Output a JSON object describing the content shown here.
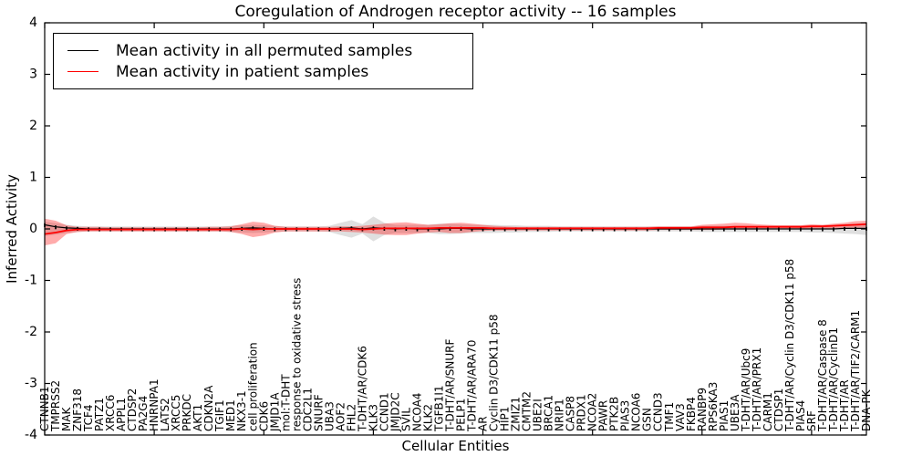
{
  "chart_data": {
    "type": "line",
    "title": "Coregulation of Androgen receptor activity -- 16 samples",
    "xlabel": "Cellular Entities",
    "ylabel": "Inferred Activity",
    "ylim": [
      -4,
      4
    ],
    "yticks": [
      4,
      3,
      2,
      1,
      0,
      -1,
      -2,
      -3,
      -4
    ],
    "grid": false,
    "legend_position": "upper left",
    "categories": [
      "CTNNB1",
      "TMPRSS2",
      "MAK",
      "ZNF318",
      "TCF4",
      "PATZ1",
      "XRCC6",
      "APPL1",
      "CTDSP2",
      "PA2G4",
      "HNRNPA1",
      "LATS2",
      "XRCC5",
      "PRKDC",
      "AKT1",
      "CDKN2A",
      "TGIF1",
      "MED1",
      "NKX3-1",
      "cell proliferation",
      "CDK6",
      "JMJD1A",
      "mol:T-DHT",
      "response to oxidative stress",
      "CDC2L1",
      "SNURF",
      "UBA3",
      "AOF2",
      "FHL2",
      "T-DHT/AR/CDK6",
      "KLK3",
      "CCND1",
      "JMJD2C",
      "SVIL",
      "NCOA4",
      "KLK2",
      "TGFB1I1",
      "T-DHT/AR/SNURF",
      "PELP1",
      "T-DHT/AR/ARA70",
      "AR",
      "Cyclin D3/CDK11 p58",
      "HIP1",
      "ZMIZ1",
      "CMTM2",
      "UBE2I",
      "BRCA1",
      "NRIP1",
      "CASP8",
      "PRDX1",
      "NCOA2",
      "PAWR",
      "PTK2B",
      "PIAS3",
      "NCOA6",
      "GSN",
      "CCND3",
      "TMF1",
      "VAV3",
      "FKBP4",
      "RANBP9",
      "RPS6KA3",
      "PIAS1",
      "UBE3A",
      "T-DHT/AR/Ubc9",
      "T-DHT/AR/PRX1",
      "CARM1",
      "CTDSP1",
      "T-DHT/AR/Cyclin D3/CDK11 p58",
      "PIAS4",
      "SRF",
      "T-DHT/AR/Caspase 8",
      "T-DHT/AR/CyclinD1",
      "T-DHT/AR",
      "T-DHT/AR/TIF2/CARM1",
      "DNA-PK"
    ],
    "series": [
      {
        "name": "Mean activity in all permuted samples",
        "color": "#000000",
        "band_color": "rgba(150,150,150,0.30)",
        "marker": "|",
        "line_width": 1.2,
        "values": [
          0.08,
          0.04,
          0.02,
          0.01,
          0,
          0,
          0,
          0,
          0,
          0,
          0,
          0,
          0,
          0,
          0,
          0,
          0,
          0,
          0.01,
          0.02,
          0.01,
          0,
          0,
          0,
          0,
          0,
          0,
          0.01,
          0.02,
          0,
          0.02,
          0.01,
          0,
          0.01,
          0,
          0,
          0,
          0.01,
          0.01,
          0,
          0,
          0,
          0,
          0,
          0,
          0,
          0,
          0,
          0,
          0,
          0,
          0,
          0,
          0,
          0,
          0,
          0,
          0,
          0,
          0,
          0,
          0,
          0,
          0,
          0,
          0,
          0,
          0,
          0,
          0,
          0,
          0,
          0,
          0.01,
          0.01,
          0.01
        ],
        "band_hi": [
          0.14,
          0.11,
          0.08,
          0.06,
          0.05,
          0.05,
          0.05,
          0.05,
          0.05,
          0.05,
          0.05,
          0.05,
          0.05,
          0.05,
          0.05,
          0.05,
          0.05,
          0.06,
          0.07,
          0.08,
          0.07,
          0.06,
          0.05,
          0.05,
          0.05,
          0.05,
          0.06,
          0.12,
          0.17,
          0.09,
          0.24,
          0.12,
          0.08,
          0.08,
          0.08,
          0.08,
          0.1,
          0.1,
          0.09,
          0.08,
          0.08,
          0.08,
          0.07,
          0.07,
          0.06,
          0.06,
          0.06,
          0.05,
          0.05,
          0.05,
          0.05,
          0.05,
          0.05,
          0.05,
          0.05,
          0.05,
          0.05,
          0.05,
          0.05,
          0.05,
          0.06,
          0.06,
          0.06,
          0.06,
          0.06,
          0.06,
          0.06,
          0.06,
          0.06,
          0.06,
          0.07,
          0.07,
          0.08,
          0.09,
          0.1,
          0.12
        ],
        "band_lo": [
          -0.14,
          -0.11,
          -0.08,
          -0.06,
          -0.05,
          -0.05,
          -0.05,
          -0.05,
          -0.05,
          -0.05,
          -0.05,
          -0.05,
          -0.05,
          -0.05,
          -0.05,
          -0.05,
          -0.05,
          -0.06,
          -0.07,
          -0.08,
          -0.07,
          -0.06,
          -0.05,
          -0.05,
          -0.05,
          -0.05,
          -0.06,
          -0.12,
          -0.17,
          -0.09,
          -0.24,
          -0.12,
          -0.08,
          -0.08,
          -0.08,
          -0.08,
          -0.1,
          -0.1,
          -0.09,
          -0.08,
          -0.08,
          -0.08,
          -0.07,
          -0.07,
          -0.06,
          -0.06,
          -0.06,
          -0.05,
          -0.05,
          -0.05,
          -0.05,
          -0.05,
          -0.05,
          -0.05,
          -0.05,
          -0.05,
          -0.05,
          -0.05,
          -0.05,
          -0.05,
          -0.06,
          -0.06,
          -0.06,
          -0.06,
          -0.06,
          -0.06,
          -0.06,
          -0.06,
          -0.06,
          -0.06,
          -0.07,
          -0.07,
          -0.08,
          -0.09,
          -0.1,
          -0.12
        ]
      },
      {
        "name": "Mean activity in patient samples",
        "color": "#ff0000",
        "band_color": "rgba(255,0,0,0.33)",
        "marker": "",
        "line_width": 1.8,
        "values": [
          -0.1,
          -0.07,
          -0.03,
          -0.01,
          -0.01,
          -0.01,
          -0.01,
          -0.01,
          -0.01,
          -0.01,
          -0.01,
          -0.01,
          -0.01,
          -0.01,
          -0.01,
          -0.01,
          -0.01,
          -0.01,
          0,
          -0.01,
          0,
          0,
          0,
          0,
          0,
          0,
          0,
          0,
          0,
          -0.01,
          0,
          0.01,
          0.01,
          0.01,
          0.01,
          0.01,
          0.02,
          0.02,
          0.02,
          0.02,
          0.02,
          0.01,
          0.01,
          0.01,
          0.01,
          0.01,
          0.01,
          0.01,
          0.01,
          0.01,
          0.01,
          0.01,
          0.01,
          0.01,
          0.01,
          0.01,
          0.02,
          0.02,
          0.02,
          0.02,
          0.03,
          0.03,
          0.03,
          0.04,
          0.04,
          0.04,
          0.04,
          0.04,
          0.04,
          0.04,
          0.05,
          0.05,
          0.06,
          0.07,
          0.08,
          0.09
        ],
        "band_hi": [
          0.2,
          0.16,
          0.07,
          0.04,
          0.04,
          0.04,
          0.03,
          0.03,
          0.03,
          0.03,
          0.03,
          0.03,
          0.03,
          0.03,
          0.03,
          0.04,
          0.04,
          0.05,
          0.09,
          0.14,
          0.12,
          0.06,
          0.04,
          0.04,
          0.04,
          0.04,
          0.04,
          0.05,
          0.05,
          0.06,
          0.08,
          0.1,
          0.12,
          0.13,
          0.1,
          0.08,
          0.09,
          0.11,
          0.12,
          0.1,
          0.08,
          0.06,
          0.05,
          0.04,
          0.04,
          0.04,
          0.04,
          0.04,
          0.04,
          0.04,
          0.04,
          0.04,
          0.04,
          0.04,
          0.04,
          0.04,
          0.05,
          0.05,
          0.05,
          0.05,
          0.08,
          0.09,
          0.1,
          0.12,
          0.11,
          0.09,
          0.08,
          0.07,
          0.07,
          0.07,
          0.09,
          0.08,
          0.1,
          0.12,
          0.15,
          0.16
        ],
        "band_lo": [
          -0.32,
          -0.28,
          -0.1,
          -0.06,
          -0.05,
          -0.05,
          -0.05,
          -0.05,
          -0.05,
          -0.05,
          -0.05,
          -0.05,
          -0.05,
          -0.05,
          -0.05,
          -0.05,
          -0.05,
          -0.06,
          -0.1,
          -0.16,
          -0.13,
          -0.07,
          -0.05,
          -0.05,
          -0.05,
          -0.05,
          -0.05,
          -0.05,
          -0.06,
          -0.07,
          -0.09,
          -0.11,
          -0.12,
          -0.12,
          -0.09,
          -0.07,
          -0.06,
          -0.08,
          -0.08,
          -0.06,
          -0.04,
          -0.03,
          -0.03,
          -0.03,
          -0.03,
          -0.03,
          -0.03,
          -0.03,
          -0.03,
          -0.03,
          -0.03,
          -0.03,
          -0.03,
          -0.03,
          -0.03,
          -0.03,
          -0.02,
          -0.02,
          -0.02,
          -0.02,
          -0.02,
          -0.02,
          -0.01,
          -0.01,
          -0.01,
          -0.01,
          0,
          0,
          0,
          0,
          0.01,
          0.01,
          0.01,
          0.02,
          0.02,
          0.03
        ]
      }
    ]
  }
}
